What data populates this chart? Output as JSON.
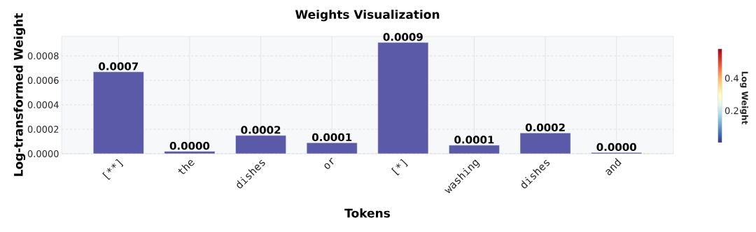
{
  "chart_data": {
    "type": "bar",
    "title": "Weights Visualization",
    "xlabel": "Tokens",
    "ylabel": "Log-transformed Weight",
    "clabel": "Log Weight",
    "categories": [
      "[**]",
      "the",
      "dishes",
      "or",
      "[*]",
      "washing",
      "dishes",
      "and"
    ],
    "values": [
      0.00067,
      2e-05,
      0.00015,
      9e-05,
      0.00091,
      7e-05,
      0.00017,
      1e-05
    ],
    "value_labels": [
      "0.0007",
      "0.0000",
      "0.0002",
      "0.0001",
      "0.0009",
      "0.0001",
      "0.0002",
      "0.0000"
    ],
    "color": "#5a5aa8",
    "ylim": [
      0,
      0.00096
    ],
    "yticks": [
      {
        "value": 0,
        "label": "0.0000"
      },
      {
        "value": 0.0002,
        "label": "0.0002"
      },
      {
        "value": 0.0004,
        "label": "0.0004"
      },
      {
        "value": 0.0006,
        "label": "0.0006"
      },
      {
        "value": 0.0008,
        "label": "0.0008"
      }
    ],
    "clim": [
      0.004,
      0.58
    ],
    "cticks": [
      0.2,
      0.4
    ],
    "grid": true
  }
}
